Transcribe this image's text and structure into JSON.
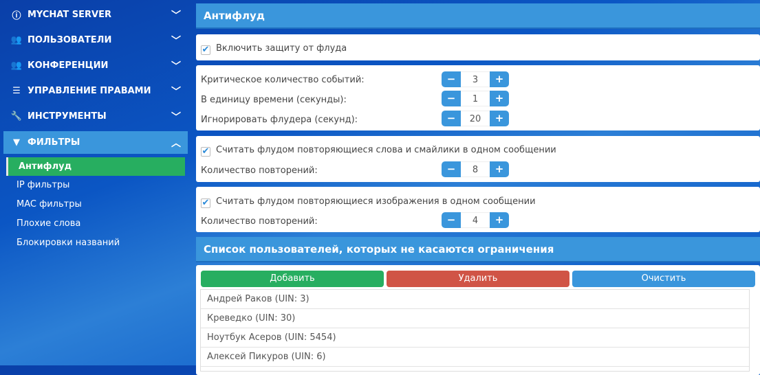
{
  "sidebar": {
    "items": [
      {
        "label": "MYCHAT SERVER",
        "icon": "info-icon"
      },
      {
        "label": "ПОЛЬЗОВАТЕЛИ",
        "icon": "users-icon"
      },
      {
        "label": "КОНФЕРЕНЦИИ",
        "icon": "users-icon"
      },
      {
        "label": "УПРАВЛЕНИЕ ПРАВАМИ",
        "icon": "list-icon"
      },
      {
        "label": "ИНСТРУМЕНТЫ",
        "icon": "wrench-icon"
      },
      {
        "label": "ФИЛЬТРЫ",
        "icon": "filter-icon",
        "expanded": true
      }
    ],
    "subitems": [
      "Антифлуд",
      "IP фильтры",
      "MAC фильтры",
      "Плохие слова",
      "Блокировки названий"
    ]
  },
  "main": {
    "title": "Антифлуд",
    "enable_label": "Включить защиту от флуда",
    "enable_checked": true,
    "critical_label": "Критическое количество событий:",
    "critical_value": "3",
    "time_label": "В единицу времени (секунды):",
    "time_value": "1",
    "ignore_label": "Игнорировать флудера (секунд):",
    "ignore_value": "20",
    "words_label": "Считать флудом повторяющиеся слова и смайлики в одном сообщении",
    "words_checked": true,
    "words_repeat_label": "Количество повторений:",
    "words_repeat_value": "8",
    "images_label": "Считать флудом повторяющиеся изображения в одном сообщении",
    "images_checked": true,
    "images_repeat_label": "Количество повторений:",
    "images_repeat_value": "4",
    "exceptions_title": "Список пользователей, которых не касаются ограничения",
    "add_label": "Добавить",
    "delete_label": "Удалить",
    "clear_label": "Очистить",
    "users": [
      "Андрей Раков (UIN: 3)",
      "Креведко (UIN: 30)",
      "Ноутбук Асеров (UIN: 5454)",
      "Алексей Пикуров (UIN: 6)"
    ],
    "minus": "−",
    "plus": "+"
  },
  "colors": {
    "accent": "#3a96dc",
    "green": "#27ae60",
    "red": "#d05446"
  }
}
